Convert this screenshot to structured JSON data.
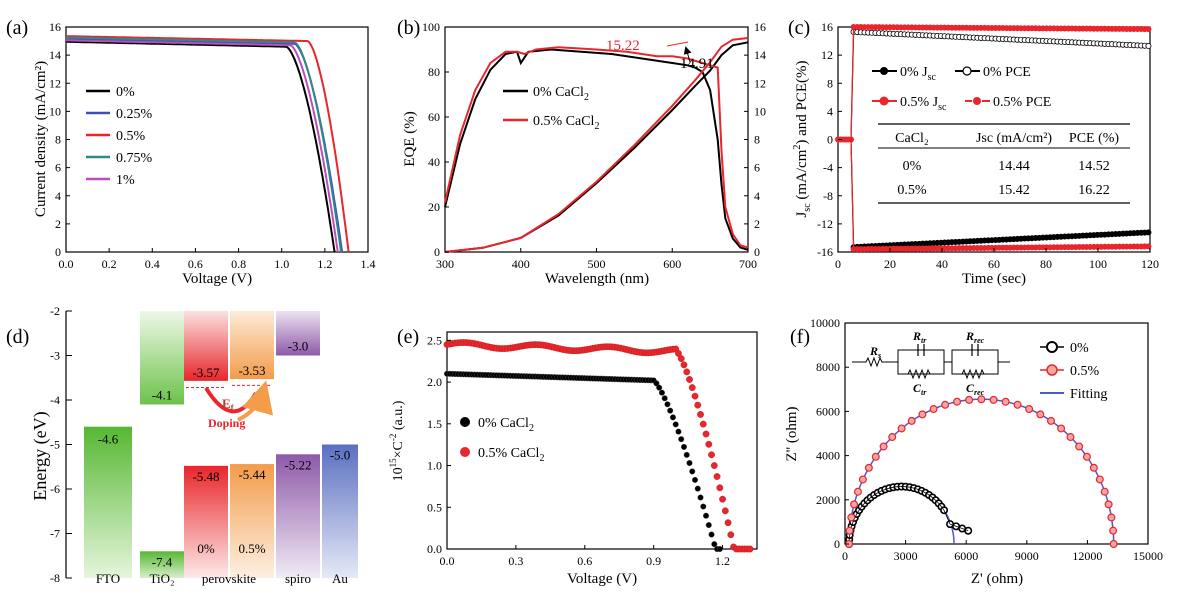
{
  "panels": {
    "a": {
      "label": "(a)"
    },
    "b": {
      "label": "(b)"
    },
    "c": {
      "label": "(c)"
    },
    "d": {
      "label": "(d)"
    },
    "e": {
      "label": "(e)"
    },
    "f": {
      "label": "(f)"
    }
  },
  "colors": {
    "black": "#000000",
    "blue": "#3f4fb5",
    "red": "#e8262b",
    "teal": "#2b8a8a",
    "magenta": "#c04bbd",
    "green": "#6cc24a",
    "orange": "#f39c4a",
    "purple": "#8e5aa8",
    "fitblue": "#4a5bc8"
  },
  "chart_data": [
    {
      "id": "a",
      "type": "line",
      "xlabel": "Voltage (V)",
      "ylabel": "Current density (mA/cm²)",
      "xlim": [
        0.0,
        1.4
      ],
      "ylim": [
        0,
        16
      ],
      "xticks": [
        "0.0",
        "0.2",
        "0.4",
        "0.6",
        "0.8",
        "1.0",
        "1.2",
        "1.4"
      ],
      "yticks": [
        "0",
        "2",
        "4",
        "6",
        "8",
        "10",
        "12",
        "14",
        "16"
      ],
      "series": [
        {
          "name": "0%",
          "color": "black",
          "jsc": 14.95,
          "voc": 1.245,
          "knee": 1.02
        },
        {
          "name": "0.25%",
          "color": "blue",
          "jsc": 15.15,
          "voc": 1.28,
          "knee": 1.06
        },
        {
          "name": "0.5%",
          "color": "red",
          "jsc": 15.35,
          "voc": 1.31,
          "knee": 1.12
        },
        {
          "name": "0.75%",
          "color": "teal",
          "jsc": 15.25,
          "voc": 1.275,
          "knee": 1.06
        },
        {
          "name": "1%",
          "color": "magenta",
          "jsc": 15.05,
          "voc": 1.26,
          "knee": 1.04
        }
      ]
    },
    {
      "id": "b",
      "type": "line",
      "xlabel": "Wavelength (nm)",
      "ylabel": "EQE (%)",
      "xlim": [
        300,
        700
      ],
      "ylim": [
        0,
        100
      ],
      "y2lim": [
        0,
        16
      ],
      "xticks": [
        "300",
        "400",
        "500",
        "600",
        "700"
      ],
      "yticks": [
        "0",
        "20",
        "40",
        "60",
        "80",
        "100"
      ],
      "y2ticks": [
        "0",
        "2",
        "4",
        "6",
        "8",
        "10",
        "12",
        "14",
        "16"
      ],
      "annotations": [
        "15.22",
        "14.91"
      ],
      "series": [
        {
          "name": "0% CaCl₂",
          "color": "black",
          "eqe": [
            [
              300,
              20
            ],
            [
              320,
              48
            ],
            [
              340,
              68
            ],
            [
              360,
              81
            ],
            [
              380,
              88
            ],
            [
              395,
              89
            ],
            [
              400,
              84
            ],
            [
              410,
              89
            ],
            [
              440,
              90
            ],
            [
              480,
              89
            ],
            [
              520,
              88
            ],
            [
              560,
              86
            ],
            [
              600,
              84
            ],
            [
              620,
              83
            ],
            [
              630,
              82
            ],
            [
              640,
              80
            ],
            [
              650,
              72
            ],
            [
              660,
              50
            ],
            [
              665,
              30
            ],
            [
              670,
              15
            ],
            [
              680,
              6
            ],
            [
              690,
              2
            ],
            [
              700,
              1
            ]
          ],
          "integrated": [
            [
              300,
              0
            ],
            [
              350,
              0.3
            ],
            [
              400,
              1.0
            ],
            [
              450,
              2.6
            ],
            [
              500,
              4.9
            ],
            [
              550,
              7.4
            ],
            [
              600,
              10.1
            ],
            [
              630,
              11.8
            ],
            [
              650,
              12.9
            ],
            [
              665,
              14.0
            ],
            [
              680,
              14.7
            ],
            [
              700,
              14.91
            ]
          ]
        },
        {
          "name": "0.5% CaCl₂",
          "color": "red",
          "eqe": [
            [
              300,
              22
            ],
            [
              320,
              52
            ],
            [
              340,
              72
            ],
            [
              360,
              84
            ],
            [
              380,
              89
            ],
            [
              395,
              89
            ],
            [
              405,
              88
            ],
            [
              420,
              90
            ],
            [
              450,
              91
            ],
            [
              500,
              90
            ],
            [
              540,
              89
            ],
            [
              580,
              87
            ],
            [
              600,
              87
            ],
            [
              620,
              86
            ],
            [
              640,
              84
            ],
            [
              650,
              83
            ],
            [
              660,
              82
            ],
            [
              665,
              45
            ],
            [
              670,
              20
            ],
            [
              680,
              8
            ],
            [
              690,
              3
            ],
            [
              700,
              2
            ]
          ],
          "integrated": [
            [
              300,
              0
            ],
            [
              350,
              0.3
            ],
            [
              400,
              1.0
            ],
            [
              450,
              2.7
            ],
            [
              500,
              5.0
            ],
            [
              550,
              7.6
            ],
            [
              600,
              10.4
            ],
            [
              630,
              12.2
            ],
            [
              650,
              13.5
            ],
            [
              665,
              14.6
            ],
            [
              680,
              15.1
            ],
            [
              700,
              15.22
            ]
          ]
        }
      ]
    },
    {
      "id": "c",
      "type": "line",
      "xlabel": "Time (sec)",
      "ylabel": "Jsc (mA/cm²) and PCE(%)",
      "xlim": [
        0,
        120
      ],
      "ylim": [
        -16,
        16
      ],
      "xticks": [
        "0",
        "20",
        "40",
        "60",
        "80",
        "100",
        "120"
      ],
      "yticks": [
        "-16",
        "-12",
        "-8",
        "-4",
        "0",
        "4",
        "8",
        "12",
        "16"
      ],
      "series": [
        {
          "name": "0% Jsc",
          "color": "black",
          "start": -15.3,
          "end": -13.2
        },
        {
          "name": "0% PCE",
          "color": "black",
          "start": 15.3,
          "end": 13.3
        },
        {
          "name": "0.5% Jsc",
          "color": "red",
          "start": -15.6,
          "end": -15.2
        },
        {
          "name": "0.5% PCE",
          "color": "red",
          "start": 16.0,
          "end": 15.7
        }
      ],
      "table": {
        "headers": [
          "CaCl₂",
          "Jsc (mA/cm²)",
          "PCE (%)"
        ],
        "rows": [
          [
            "0%",
            "14.44",
            "14.52"
          ],
          [
            "0.5%",
            "15.42",
            "16.22"
          ]
        ]
      }
    },
    {
      "id": "d",
      "type": "bar",
      "ylabel": "Energy (eV)",
      "ylim": [
        -8,
        -2
      ],
      "yticks": [
        "-8",
        "-7",
        "-6",
        "-5",
        "-4",
        "-3",
        "-2"
      ],
      "categories": [
        "FTO",
        "TiO₂",
        "perovskite",
        "spiro",
        "Au"
      ],
      "levels": [
        {
          "label": "-4.6",
          "value": -4.6
        },
        {
          "label": "-4.1",
          "value": -4.1
        },
        {
          "label": "-7.4",
          "value": -7.4
        },
        {
          "label": "-3.57",
          "value": -3.57
        },
        {
          "label": "-5.48",
          "value": -5.48
        },
        {
          "label": "-3.53",
          "value": -3.53
        },
        {
          "label": "-5.44",
          "value": -5.44
        },
        {
          "label": "-3.0",
          "value": -3.0
        },
        {
          "label": "-5.22",
          "value": -5.22
        },
        {
          "label": "-5.0",
          "value": -5.0
        }
      ],
      "sub_labels": [
        "0%",
        "0.5%"
      ],
      "arrow_text": [
        "E",
        "f",
        "Doping"
      ]
    },
    {
      "id": "e",
      "type": "scatter",
      "xlabel": "Voltage (V)",
      "ylabel": "10¹⁵×C⁻²",
      "yunit": "(a.u.)",
      "xlim": [
        0.0,
        1.35
      ],
      "ylim": [
        0.0,
        2.6
      ],
      "xticks": [
        "0.0",
        "0.3",
        "0.6",
        "0.9",
        "1.2"
      ],
      "yticks": [
        "0.0",
        "0.5",
        "1.0",
        "1.5",
        "2.0",
        "2.5"
      ],
      "series": [
        {
          "name": "0% CaCl₂",
          "color": "black",
          "plateau": 2.1,
          "drop_start": 0.9,
          "zero_at": 1.17
        },
        {
          "name": "0.5% CaCl₂",
          "color": "red",
          "plateau": 2.45,
          "drop_start": 1.0,
          "zero_at": 1.25
        }
      ]
    },
    {
      "id": "f",
      "type": "scatter",
      "xlabel": "Z' (ohm)",
      "ylabel": "Z'' (ohm)",
      "xlim": [
        0,
        15000
      ],
      "ylim": [
        0,
        10000
      ],
      "xticks": [
        "0",
        "3000",
        "6000",
        "9000",
        "12000",
        "15000"
      ],
      "yticks": [
        "0",
        "2000",
        "4000",
        "6000",
        "8000",
        "10000"
      ],
      "series": [
        {
          "name": "0%",
          "color": "black",
          "r_s": 200,
          "r_end": 5400,
          "tail_to": 6100
        },
        {
          "name": "0.5%",
          "color": "red",
          "r_s": 200,
          "r_end": 13300
        },
        {
          "name": "Fitting",
          "color": "fitblue"
        }
      ],
      "circuit_labels": [
        "R",
        "s",
        "R",
        "tr",
        "C",
        "tr",
        "R",
        "rec",
        "C",
        "rec"
      ]
    }
  ],
  "text": {
    "b_leg0": "0% CaCl",
    "b_leg1": "0.5% CaCl",
    "sub2": "2",
    "c_leg0a": "0% J",
    "c_leg0b": "0% PCE",
    "c_leg1a": "0.5% J",
    "c_leg1b": "0.5% PCE",
    "sc": "sc",
    "e_leg0": "0% CaCl",
    "e_leg1": "0.5% CaCl",
    "e_ylabel_main": "10",
    "e_ylabel_sup": "15",
    "e_ylabel_rest": "×C",
    "e_ylabel_sup2": "-2",
    "e_ylabel_unit": "(a.u.)",
    "c_ylabel_j": "J",
    "c_ylabel_rest": "(mA/cm",
    "c_ylabel_tail": ") and PCE(%)",
    "sup2": "2"
  }
}
